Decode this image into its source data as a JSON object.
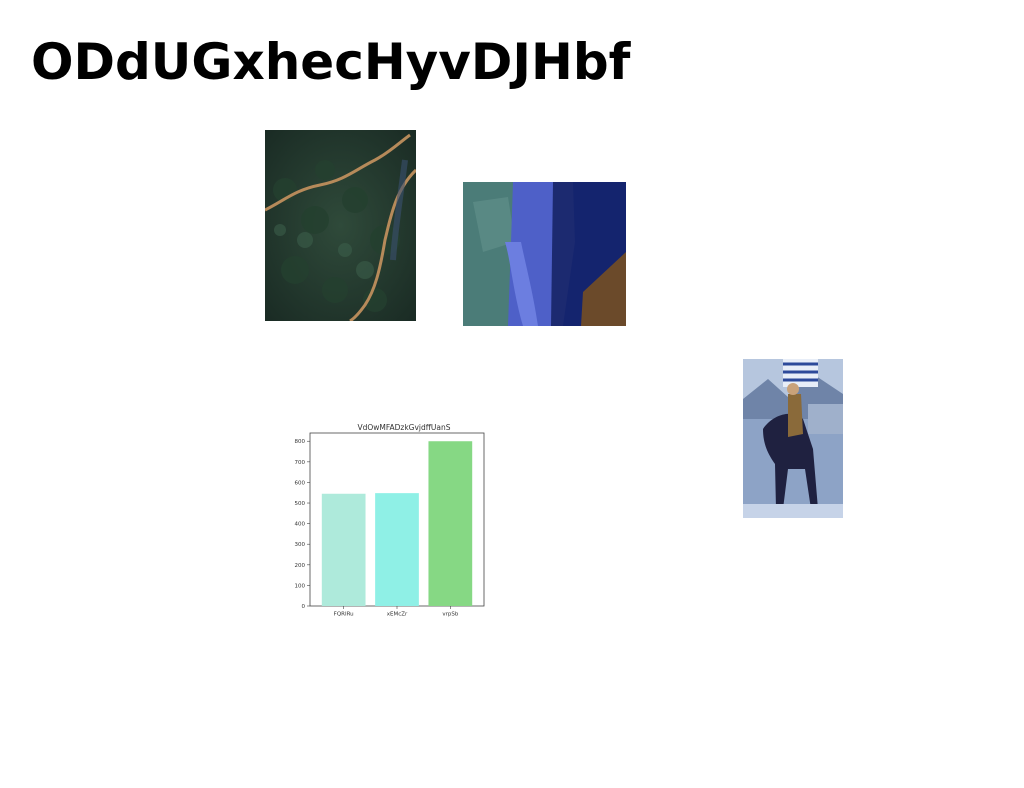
{
  "page": {
    "title": "ODdUGxhecHyvDJHbf"
  },
  "images": [
    {
      "id": "forest",
      "icon": "aerial-forest-river-photo"
    },
    {
      "id": "people",
      "icon": "people-blue-tinted-photo"
    },
    {
      "id": "rider",
      "icon": "horse-rider-flag-photo"
    }
  ],
  "chart_data": {
    "type": "bar",
    "title": "VdOwMFADzkGvjdffUanS",
    "xlabel": "",
    "ylabel": "",
    "categories": [
      "FQRIRu",
      "xEMcZr",
      "vrpSb"
    ],
    "values": [
      545,
      548,
      800
    ],
    "colors": [
      "#aeeadb",
      "#8ff0e6",
      "#86d884"
    ],
    "ylim": [
      0,
      840
    ],
    "yticks": [
      0,
      100,
      200,
      300,
      400,
      500,
      600,
      700,
      800
    ],
    "grid": false
  }
}
